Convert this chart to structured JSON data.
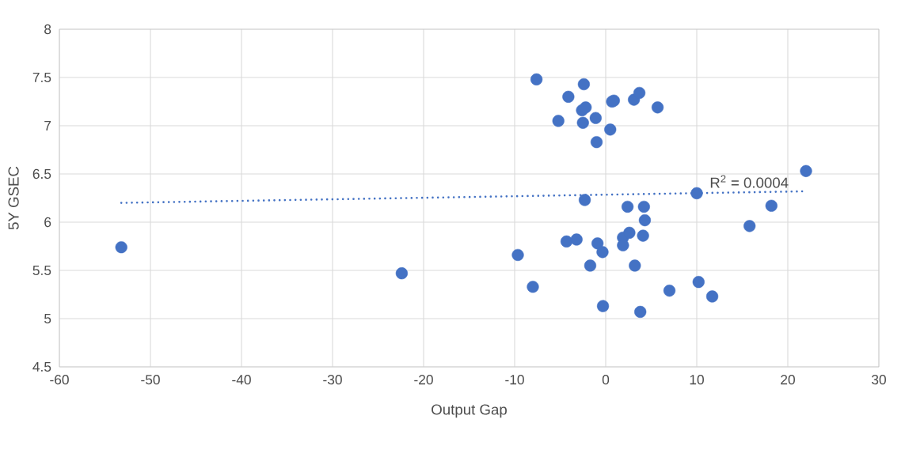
{
  "chart_data": {
    "type": "scatter",
    "xlabel": "Output Gap",
    "ylabel": "5Y GSEC",
    "xlim": [
      -60,
      30
    ],
    "xticks": [
      -60,
      -50,
      -40,
      -30,
      -20,
      -10,
      0,
      10,
      20,
      30
    ],
    "ylim": [
      4.5,
      8
    ],
    "yticks": [
      4.5,
      5,
      5.5,
      6,
      6.5,
      7,
      7.5,
      8
    ],
    "grid": true,
    "annotations": [
      "R$^{2}$ = 0.0004"
    ],
    "series": [
      {
        "type": "scatter",
        "color": "#4472c4",
        "marker": "circle",
        "x": [
          -53.2,
          -22.4,
          -9.65,
          -8.0,
          -7.6,
          -5.2,
          -4.1,
          -4.3,
          -3.2,
          -2.4,
          -2.6,
          -2.2,
          -2.5,
          -2.3,
          -1.7,
          -1.1,
          -1.0,
          -0.9,
          -0.35,
          -0.3,
          0.5,
          0.7,
          0.9,
          2.4,
          1.9,
          1.9,
          2.6,
          3.1,
          3.7,
          3.2,
          3.8,
          4.1,
          4.2,
          4.3,
          5.7,
          7.0,
          10.0,
          10.2,
          11.7,
          15.8,
          18.2,
          22.0
        ],
        "values": [
          5.74,
          5.47,
          5.66,
          5.33,
          7.48,
          7.05,
          7.3,
          5.8,
          5.82,
          7.43,
          7.16,
          7.19,
          7.03,
          6.23,
          5.55,
          7.08,
          6.83,
          5.78,
          5.69,
          5.13,
          6.96,
          7.25,
          7.26,
          6.16,
          5.84,
          5.76,
          5.89,
          7.27,
          7.34,
          5.55,
          5.07,
          5.86,
          6.16,
          6.02,
          7.19,
          5.29,
          6.3,
          5.38,
          5.23,
          5.96,
          6.17,
          6.53
        ]
      },
      {
        "type": "line",
        "color": "#4472c4",
        "line_style": "dotted",
        "marker": "none",
        "x": [
          -53.2,
          22.0
        ],
        "values": [
          6.2,
          6.32
        ]
      }
    ]
  }
}
